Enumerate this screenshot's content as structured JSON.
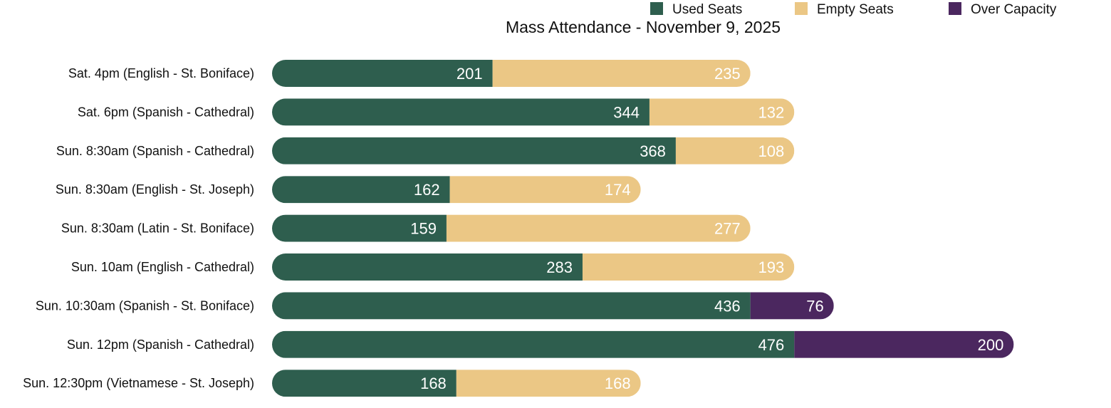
{
  "chart_data": {
    "type": "bar",
    "orientation": "horizontal",
    "stacked": true,
    "title": "Mass Attendance - November 9, 2025",
    "legend_position": "top-right",
    "grid": false,
    "categories": [
      "Sat. 4pm (English - St. Boniface)",
      "Sat. 6pm (Spanish - Cathedral)",
      "Sun. 8:30am (Spanish - Cathedral)",
      "Sun. 8:30am (English - St. Joseph)",
      "Sun. 8:30am (Latin - St. Boniface)",
      "Sun. 10am (English - Cathedral)",
      "Sun. 10:30am (Spanish - St. Boniface)",
      "Sun. 12pm (Spanish - Cathedral)",
      "Sun. 12:30pm (Vietnamese - St. Joseph)"
    ],
    "series": [
      {
        "name": "Used Seats",
        "color": "#2e5e4e",
        "values": [
          201,
          344,
          368,
          162,
          159,
          283,
          436,
          476,
          168
        ]
      },
      {
        "name": "Empty Seats",
        "color": "#ebc785",
        "values": [
          235,
          132,
          108,
          174,
          277,
          193,
          0,
          0,
          168
        ]
      },
      {
        "name": "Over Capacity",
        "color": "#4b275f",
        "values": [
          0,
          0,
          0,
          0,
          0,
          0,
          76,
          200,
          0
        ]
      }
    ],
    "xlim": [
      0,
      676
    ]
  }
}
